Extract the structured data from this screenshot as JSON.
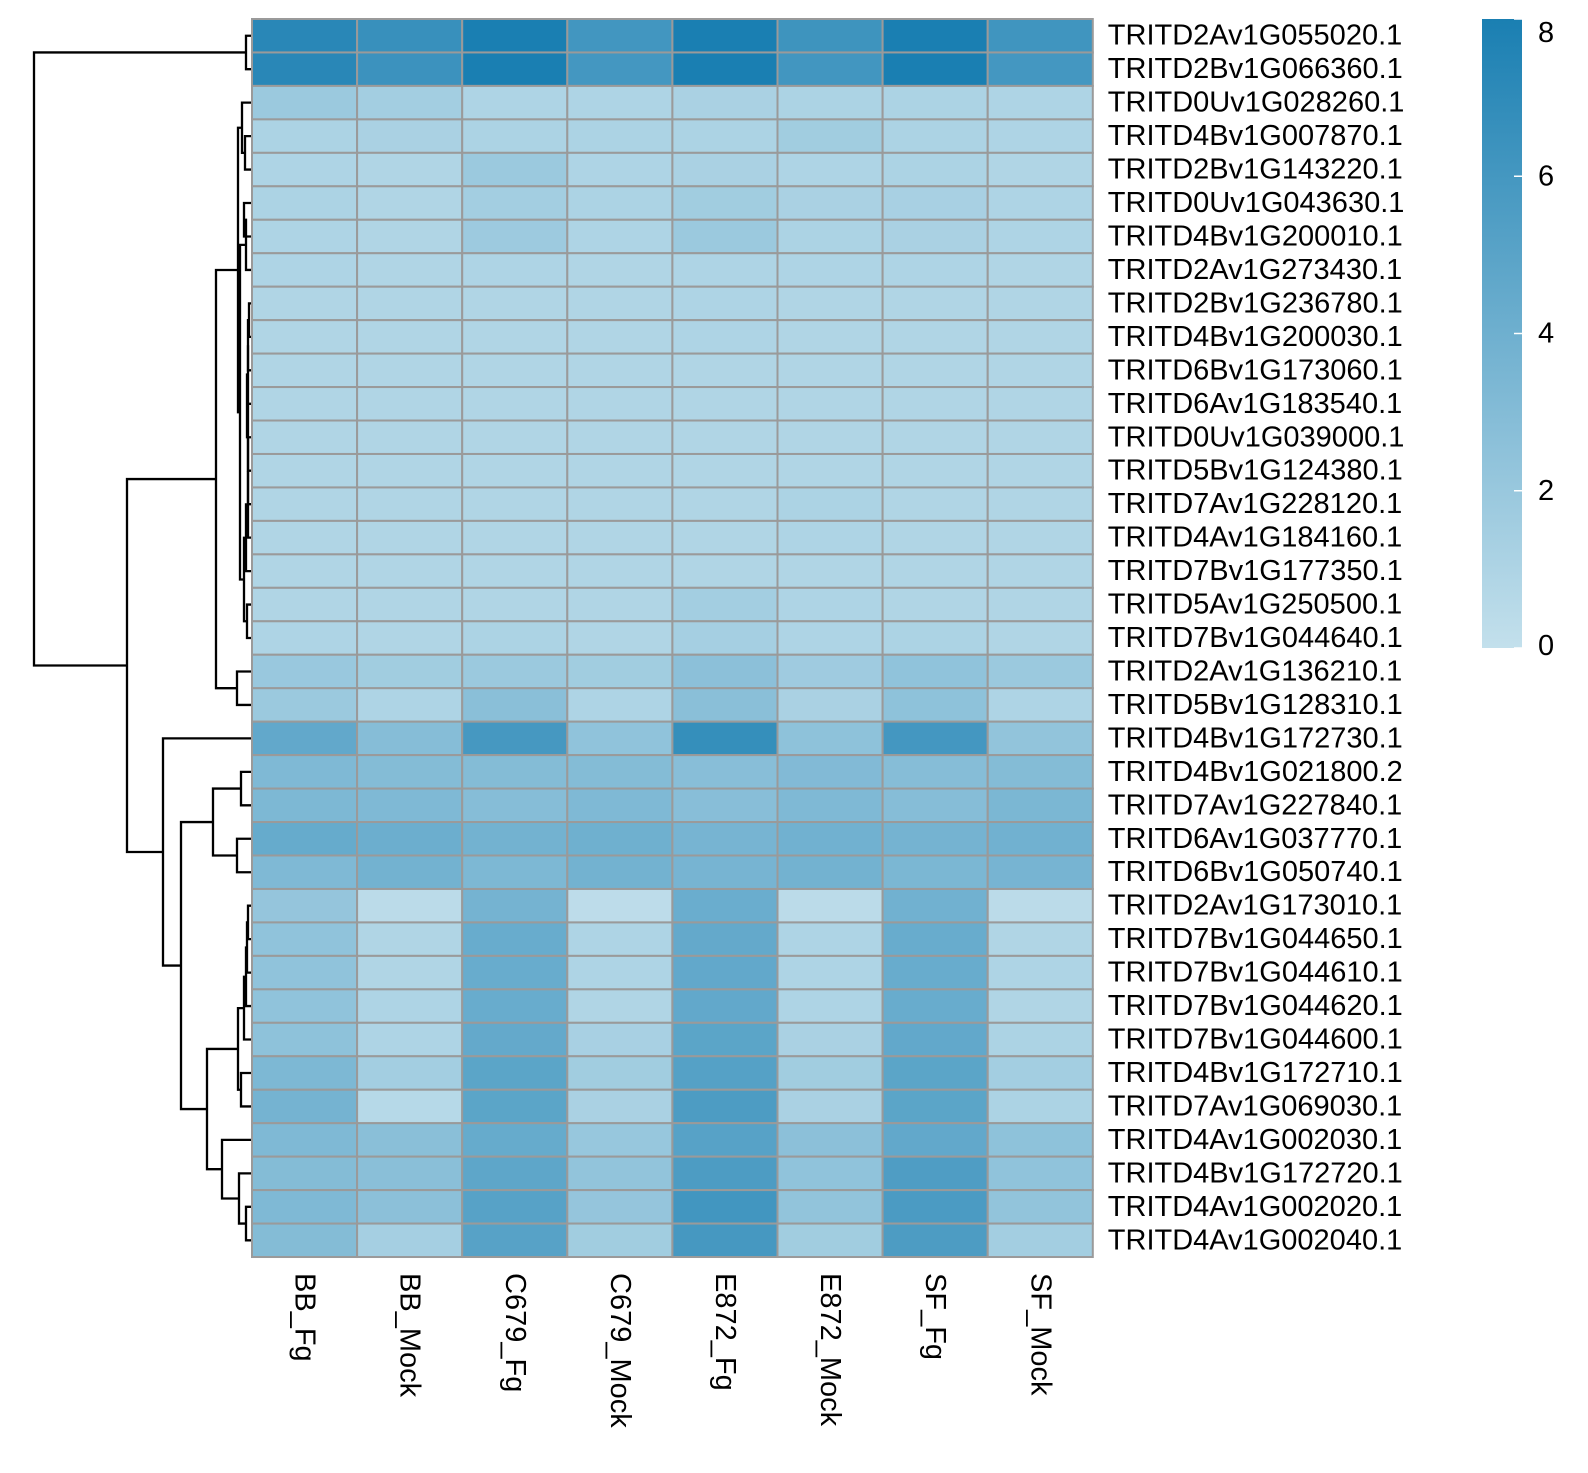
{
  "chart_data": {
    "type": "heatmap",
    "title": "",
    "xlabel": "",
    "ylabel": "",
    "columns": [
      "BB_Fg",
      "BB_Mock",
      "C679_Fg",
      "C679_Mock",
      "E872_Fg",
      "E872_Mock",
      "SF_Fg",
      "SF_Mock"
    ],
    "rows": [
      "TRITD2Av1G055020.1",
      "TRITD2Bv1G066360.1",
      "TRITD0Uv1G028260.1",
      "TRITD4Bv1G007870.1",
      "TRITD2Bv1G143220.1",
      "TRITD0Uv1G043630.1",
      "TRITD4Bv1G200010.1",
      "TRITD2Av1G273430.1",
      "TRITD2Bv1G236780.1",
      "TRITD4Bv1G200030.1",
      "TRITD6Bv1G173060.1",
      "TRITD6Av1G183540.1",
      "TRITD0Uv1G039000.1",
      "TRITD5Bv1G124380.1",
      "TRITD7Av1G228120.1",
      "TRITD4Av1G184160.1",
      "TRITD7Bv1G177350.1",
      "TRITD5Av1G250500.1",
      "TRITD7Bv1G044640.1",
      "TRITD2Av1G136210.1",
      "TRITD5Bv1G128310.1",
      "TRITD4Bv1G172730.1",
      "TRITD4Bv1G021800.2",
      "TRITD7Av1G227840.1",
      "TRITD6Av1G037770.1",
      "TRITD6Bv1G050740.1",
      "TRITD2Av1G173010.1",
      "TRITD7Bv1G044650.1",
      "TRITD7Bv1G044610.1",
      "TRITD7Bv1G044620.1",
      "TRITD7Bv1G044600.1",
      "TRITD4Bv1G172710.1",
      "TRITD7Av1G069030.1",
      "TRITD4Av1G002030.1",
      "TRITD4Bv1G172720.1",
      "TRITD4Av1G002020.1",
      "TRITD4Av1G002040.1"
    ],
    "values": [
      [
        7.3,
        6.6,
        8.0,
        6.1,
        8.0,
        6.3,
        8.0,
        6.2
      ],
      [
        7.3,
        6.4,
        8.0,
        6.0,
        8.0,
        6.1,
        8.0,
        6.0
      ],
      [
        1.9,
        1.5,
        1.0,
        1.0,
        1.2,
        1.1,
        1.1,
        1.0
      ],
      [
        1.1,
        1.2,
        1.1,
        1.1,
        1.1,
        1.6,
        1.1,
        1.0
      ],
      [
        1.0,
        0.9,
        1.9,
        1.0,
        1.2,
        1.0,
        1.1,
        0.9
      ],
      [
        1.1,
        0.9,
        1.5,
        1.1,
        1.6,
        1.2,
        1.3,
        1.0
      ],
      [
        1.0,
        0.9,
        1.8,
        1.0,
        1.9,
        1.1,
        1.2,
        1.0
      ],
      [
        1.0,
        0.9,
        1.0,
        0.9,
        1.0,
        1.0,
        1.0,
        0.9
      ],
      [
        0.9,
        0.9,
        0.9,
        0.9,
        1.0,
        0.9,
        0.9,
        0.9
      ],
      [
        0.9,
        0.9,
        0.9,
        0.9,
        1.0,
        0.9,
        0.9,
        0.9
      ],
      [
        0.9,
        0.9,
        0.9,
        0.9,
        0.9,
        0.9,
        0.9,
        0.9
      ],
      [
        0.9,
        0.9,
        0.9,
        0.9,
        0.9,
        0.9,
        0.9,
        0.9
      ],
      [
        0.9,
        0.9,
        0.9,
        0.9,
        0.9,
        0.9,
        0.9,
        0.9
      ],
      [
        0.9,
        0.9,
        0.9,
        0.9,
        0.9,
        0.9,
        0.9,
        0.9
      ],
      [
        0.9,
        0.9,
        0.9,
        0.9,
        0.9,
        1.1,
        0.9,
        0.9
      ],
      [
        0.9,
        0.9,
        0.9,
        0.9,
        0.9,
        1.0,
        0.9,
        0.9
      ],
      [
        0.9,
        0.9,
        0.9,
        0.9,
        0.9,
        0.9,
        0.9,
        0.9
      ],
      [
        0.9,
        0.9,
        0.9,
        0.9,
        1.5,
        1.0,
        0.9,
        0.9
      ],
      [
        1.0,
        0.9,
        1.1,
        0.9,
        1.4,
        1.0,
        1.1,
        0.9
      ],
      [
        2.0,
        1.6,
        1.9,
        1.6,
        2.6,
        1.7,
        2.4,
        1.9
      ],
      [
        1.9,
        1.0,
        2.7,
        1.0,
        2.7,
        1.2,
        2.5,
        1.0
      ],
      [
        4.6,
        2.9,
        5.9,
        2.4,
        6.7,
        2.5,
        6.0,
        2.3
      ],
      [
        3.2,
        3.0,
        3.0,
        3.0,
        2.8,
        3.1,
        2.9,
        3.0
      ],
      [
        3.3,
        3.2,
        2.9,
        3.2,
        2.8,
        3.2,
        2.9,
        3.4
      ],
      [
        4.4,
        4.1,
        3.8,
        4.0,
        3.6,
        3.9,
        3.7,
        3.9
      ],
      [
        3.2,
        3.8,
        3.3,
        3.8,
        3.6,
        3.8,
        3.4,
        3.6
      ],
      [
        2.2,
        0.4,
        3.7,
        0.3,
        4.2,
        0.4,
        3.9,
        0.4
      ],
      [
        2.4,
        0.9,
        4.3,
        1.0,
        4.5,
        1.0,
        4.3,
        0.9
      ],
      [
        2.4,
        0.9,
        4.3,
        1.0,
        4.6,
        1.0,
        4.3,
        1.0
      ],
      [
        2.4,
        1.0,
        4.3,
        0.9,
        4.6,
        1.0,
        4.3,
        0.9
      ],
      [
        2.5,
        1.0,
        4.5,
        1.3,
        4.9,
        1.2,
        4.6,
        1.1
      ],
      [
        3.3,
        1.5,
        4.9,
        1.6,
        5.2,
        1.6,
        4.9,
        1.5
      ],
      [
        3.7,
        0.6,
        4.9,
        1.2,
        5.6,
        1.2,
        4.9,
        1.1
      ],
      [
        3.2,
        2.7,
        4.4,
        2.1,
        5.1,
        2.6,
        4.6,
        2.5
      ],
      [
        3.0,
        2.7,
        4.8,
        2.3,
        5.6,
        2.4,
        5.5,
        2.4
      ],
      [
        3.2,
        2.6,
        5.1,
        2.2,
        6.1,
        2.3,
        5.7,
        2.3
      ],
      [
        3.0,
        1.4,
        5.1,
        1.6,
        5.9,
        1.6,
        5.6,
        1.5
      ]
    ],
    "colorscale": {
      "min": 0,
      "max": 8,
      "low_color": "#c3e0ec",
      "high_color": "#1a7fb2"
    },
    "legend": {
      "ticks": [
        0,
        2,
        4,
        6,
        8
      ],
      "placement": "right"
    },
    "cell_border_color": "#9a9a9a"
  }
}
